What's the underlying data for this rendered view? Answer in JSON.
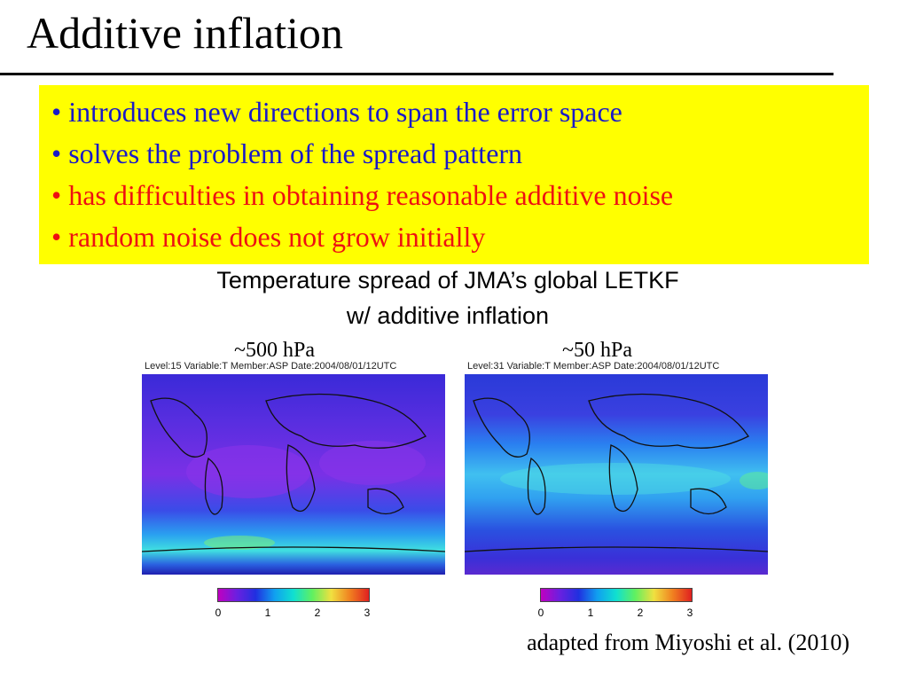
{
  "slide": {
    "title": "Additive inflation",
    "bullets": [
      {
        "text": "• introduces new directions to span the error space",
        "color": "#1a1ac8"
      },
      {
        "text": "• solves the problem of the spread pattern",
        "color": "#1a1ac8"
      },
      {
        "text": "• has difficulties in obtaining reasonable additive noise",
        "color": "#ee1111"
      },
      {
        "text": "• random noise does not grow initially",
        "color": "#ee1111"
      }
    ],
    "caption_line1": "Temperature spread of JMA’s global LETKF",
    "caption_line2": "w/ additive inflation",
    "panels": [
      {
        "level_label": "~500 hPa",
        "header": "Level:15 Variable:T Member:ASP Date:2004/08/01/12UTC",
        "colorbar_ticks": [
          "0",
          "1",
          "2",
          "3"
        ]
      },
      {
        "level_label": "~50 hPa",
        "header": "Level:31 Variable:T Member:ASP Date:2004/08/01/12UTC",
        "colorbar_ticks": [
          "0",
          "1",
          "2",
          "3"
        ]
      }
    ],
    "credit": "adapted from Miyoshi et al. (2010)",
    "highlight_color": "#ffff00"
  }
}
